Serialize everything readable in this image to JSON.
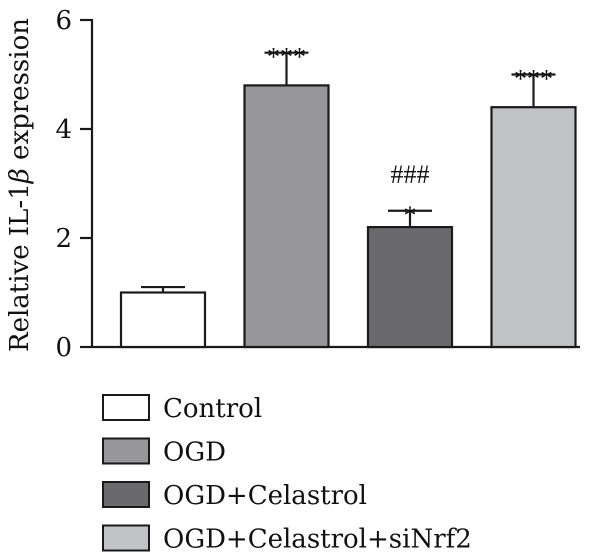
{
  "chart_data": {
    "type": "bar",
    "categories": [
      "Control",
      "OGD",
      "OGD+Celastrol",
      "OGD+Celastrol+siNrf2"
    ],
    "values": [
      1.0,
      4.8,
      2.2,
      4.4
    ],
    "errors": [
      0.1,
      0.6,
      0.3,
      0.6
    ],
    "annotations": [
      [],
      [
        "***"
      ],
      [
        "###",
        "*"
      ],
      [
        "***"
      ]
    ],
    "colors": [
      "#ffffff",
      "#97979a",
      "#6a6a6d",
      "#c2c3c6"
    ],
    "ylabel_prefix": "Relative IL-1",
    "ylabel_symbol": "β",
    "ylabel_suffix": " expression",
    "ylim": [
      0,
      6
    ],
    "yticks": [
      "0",
      "2",
      "4",
      "6"
    ],
    "legend": [
      "Control",
      "OGD",
      "OGD+Celastrol",
      "OGD+Celastrol+siNrf2"
    ],
    "legend_position": "bottom"
  }
}
